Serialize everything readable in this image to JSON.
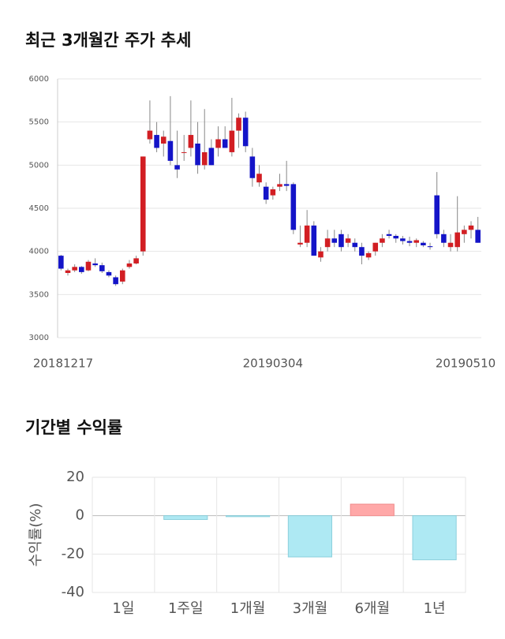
{
  "chart_data": [
    {
      "type": "candlestick",
      "title": "최근 3개월간 주가 추세",
      "categories": [
        "20181217",
        null,
        null,
        null,
        null,
        null,
        null,
        null,
        null,
        null,
        null,
        null,
        null,
        null,
        null,
        null,
        null,
        null,
        null,
        null,
        null,
        null,
        null,
        null,
        null,
        null,
        null,
        null,
        null,
        null,
        null,
        "20190304",
        null,
        null,
        null,
        null,
        null,
        null,
        null,
        null,
        null,
        null,
        null,
        null,
        null,
        null,
        null,
        null,
        null,
        null,
        null,
        null,
        null,
        null,
        null,
        null,
        null,
        null,
        null,
        null,
        null,
        "20190510"
      ],
      "open": [
        3950,
        3750,
        3780,
        3820,
        3780,
        3860,
        3840,
        3760,
        3700,
        3650,
        3820,
        3860,
        4000,
        5300,
        5350,
        5250,
        5280,
        5000,
        5150,
        5200,
        5250,
        5000,
        5200,
        5200,
        5300,
        5150,
        5400,
        5550,
        5100,
        4800,
        4750,
        4650,
        4750,
        4780,
        4780,
        4080,
        4100,
        4300,
        3930,
        4050,
        4150,
        4200,
        4100,
        4100,
        4050,
        3930,
        4000,
        4100,
        4200,
        4180,
        4150,
        4120,
        4100,
        4100,
        4060,
        4650,
        4200,
        4050,
        4050,
        4200,
        4250,
        4250
      ],
      "high": [
        3960,
        3800,
        3850,
        3830,
        3900,
        3920,
        3870,
        3780,
        3720,
        3800,
        3900,
        3950,
        5100,
        5750,
        5500,
        5400,
        5800,
        5400,
        5350,
        5750,
        5500,
        5650,
        5300,
        5450,
        5450,
        5780,
        5600,
        5620,
        5200,
        5000,
        4800,
        4750,
        4900,
        5050,
        4800,
        4300,
        4480,
        4350,
        4050,
        4250,
        4250,
        4250,
        4200,
        4150,
        4100,
        4000,
        4100,
        4200,
        4250,
        4200,
        4180,
        4170,
        4150,
        4120,
        4100,
        4920,
        4250,
        4200,
        4640,
        4300,
        4350,
        4400
      ],
      "low": [
        3780,
        3720,
        3760,
        3740,
        3770,
        3820,
        3750,
        3700,
        3600,
        3620,
        3800,
        3850,
        3950,
        5250,
        5150,
        5100,
        5000,
        4850,
        5050,
        5100,
        4900,
        4950,
        5000,
        5100,
        5200,
        5100,
        5200,
        5150,
        4750,
        4750,
        4550,
        4600,
        4700,
        4700,
        4200,
        4050,
        4050,
        3950,
        3880,
        4000,
        4050,
        4000,
        4050,
        4000,
        3850,
        3900,
        3950,
        4050,
        4150,
        4100,
        4080,
        4060,
        4050,
        4050,
        4020,
        4150,
        4050,
        4000,
        4000,
        4100,
        4150,
        4100
      ],
      "close": [
        3800,
        3780,
        3820,
        3760,
        3880,
        3840,
        3770,
        3720,
        3620,
        3780,
        3860,
        3920,
        5100,
        5400,
        5200,
        5330,
        5050,
        4950,
        5150,
        5350,
        5000,
        5150,
        5000,
        5300,
        5200,
        5400,
        5550,
        5220,
        4850,
        4900,
        4600,
        4720,
        4780,
        4760,
        4250,
        4100,
        4300,
        3950,
        4000,
        4150,
        4100,
        4050,
        4150,
        4050,
        3950,
        3980,
        4100,
        4150,
        4180,
        4150,
        4120,
        4100,
        4130,
        4070,
        4050,
        4200,
        4100,
        4100,
        4220,
        4250,
        4300,
        4100
      ],
      "up_color": "#d21e23",
      "down_color": "#1414c8",
      "ylim": [
        3000,
        6000
      ],
      "yticks": [
        3000,
        3500,
        4000,
        4500,
        5000,
        5500,
        6000
      ],
      "grid": true
    },
    {
      "type": "bar",
      "title": "기간별 수익률",
      "ylabel": "수익률(%)",
      "categories": [
        "1일",
        "1주일",
        "1개월",
        "3개월",
        "6개월",
        "1년"
      ],
      "values": [
        0,
        -2,
        -0.5,
        -21.5,
        6,
        -23
      ],
      "positive_color": "#ffa8a8",
      "negative_color": "#aee9f3",
      "ylim": [
        -40,
        20
      ],
      "yticks": [
        -40,
        -20,
        0,
        20
      ],
      "grid": true
    }
  ]
}
